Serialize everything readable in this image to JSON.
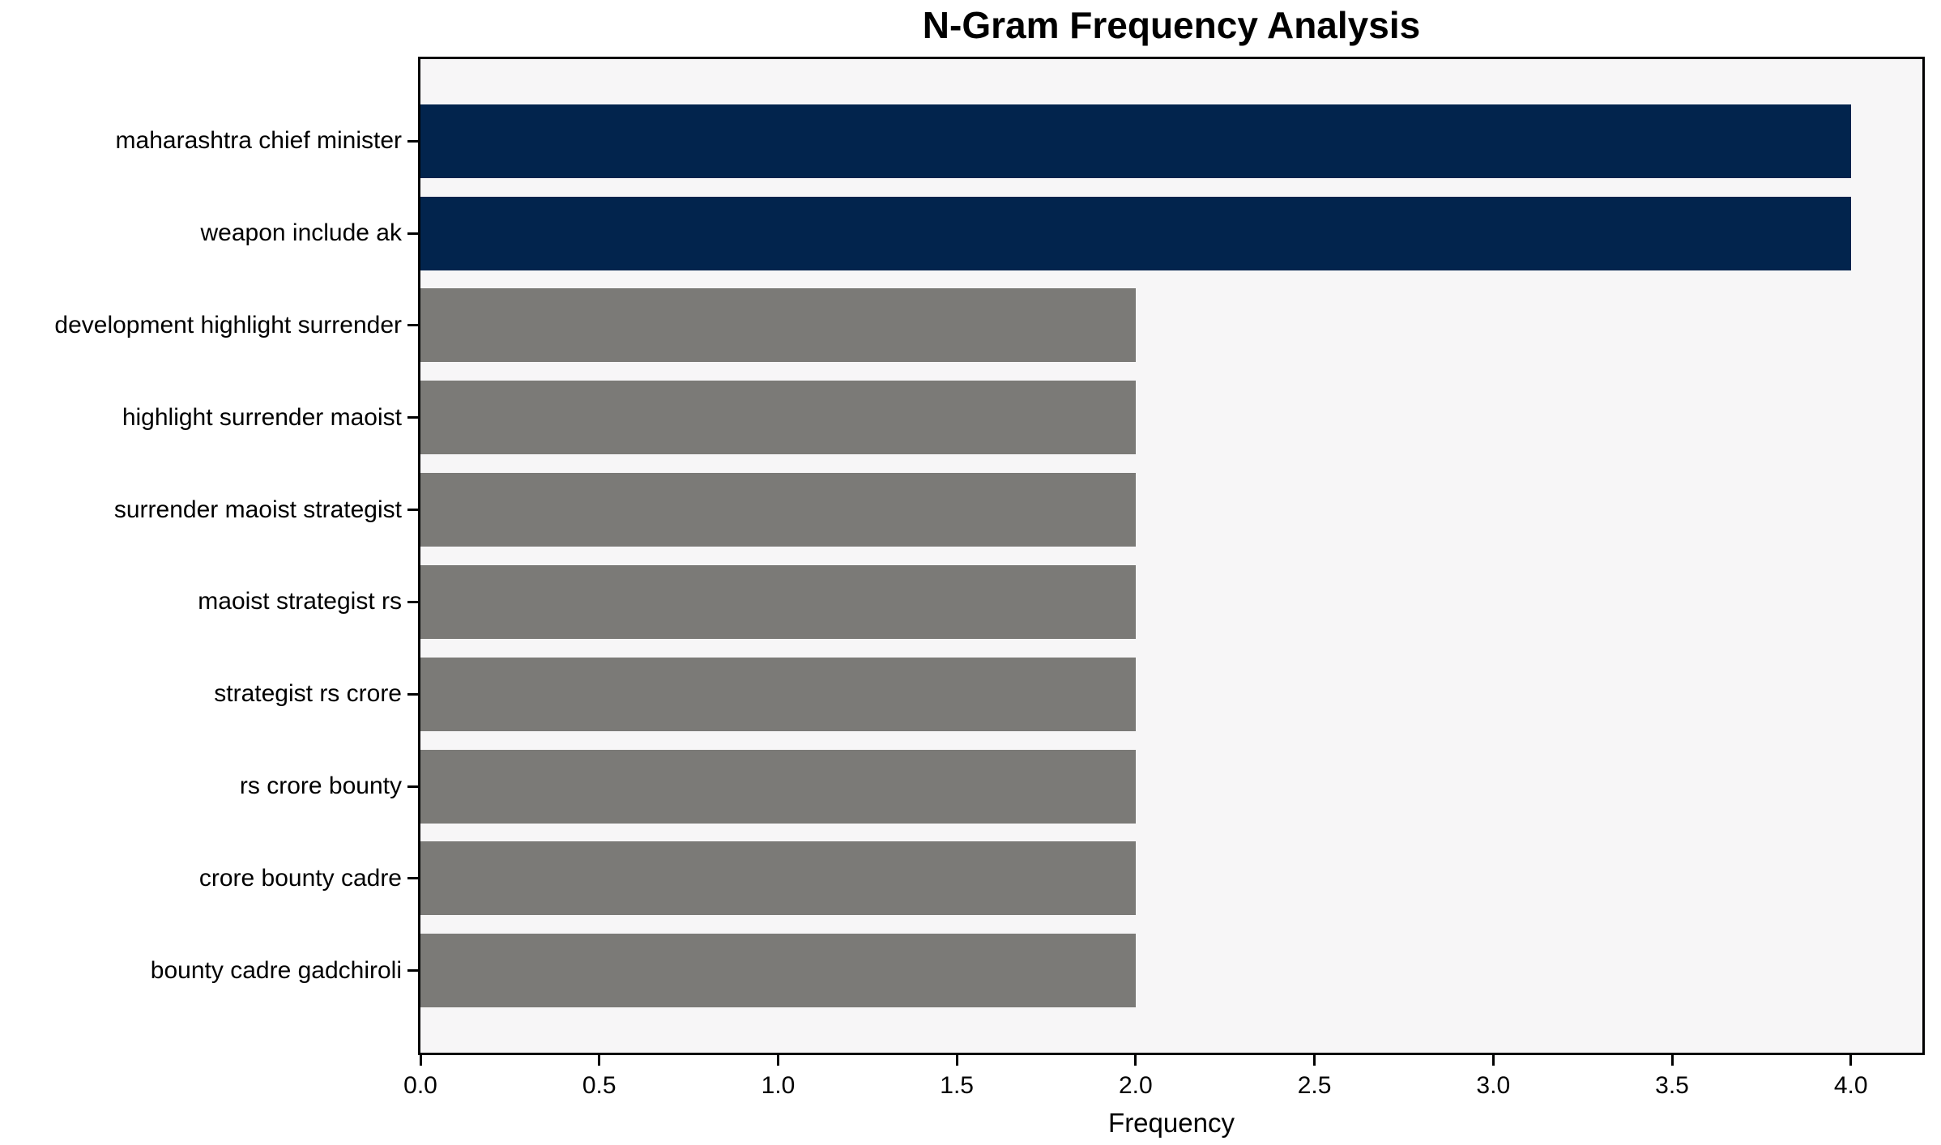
{
  "chart_data": {
    "type": "bar",
    "orientation": "horizontal",
    "title": "N-Gram Frequency Analysis",
    "xlabel": "Frequency",
    "ylabel": "",
    "categories": [
      "maharashtra chief minister",
      "weapon include ak",
      "development highlight surrender",
      "highlight surrender maoist",
      "surrender maoist strategist",
      "maoist strategist rs",
      "strategist rs crore",
      "rs crore bounty",
      "crore bounty cadre",
      "bounty cadre gadchiroli"
    ],
    "values": [
      4,
      4,
      2,
      2,
      2,
      2,
      2,
      2,
      2,
      2
    ],
    "bar_colors": [
      "#02244d",
      "#02244d",
      "#7b7a77",
      "#7b7a77",
      "#7b7a77",
      "#7b7a77",
      "#7b7a77",
      "#7b7a77",
      "#7b7a77",
      "#7b7a77"
    ],
    "xlim": [
      0,
      4.2
    ],
    "xticks": [
      0.0,
      0.5,
      1.0,
      1.5,
      2.0,
      2.5,
      3.0,
      3.5,
      4.0
    ],
    "xtick_labels": [
      "0.0",
      "0.5",
      "1.0",
      "1.5",
      "2.0",
      "2.5",
      "3.0",
      "3.5",
      "4.0"
    ],
    "grid": false,
    "legend": null,
    "colors": {
      "highlight_bar": "#02244d",
      "default_bar": "#7b7a77",
      "plot_background": "#f7f6f7",
      "figure_background": "#ffffff",
      "spine": "#000000",
      "text": "#000000"
    },
    "bar_height_fraction": 0.8
  }
}
